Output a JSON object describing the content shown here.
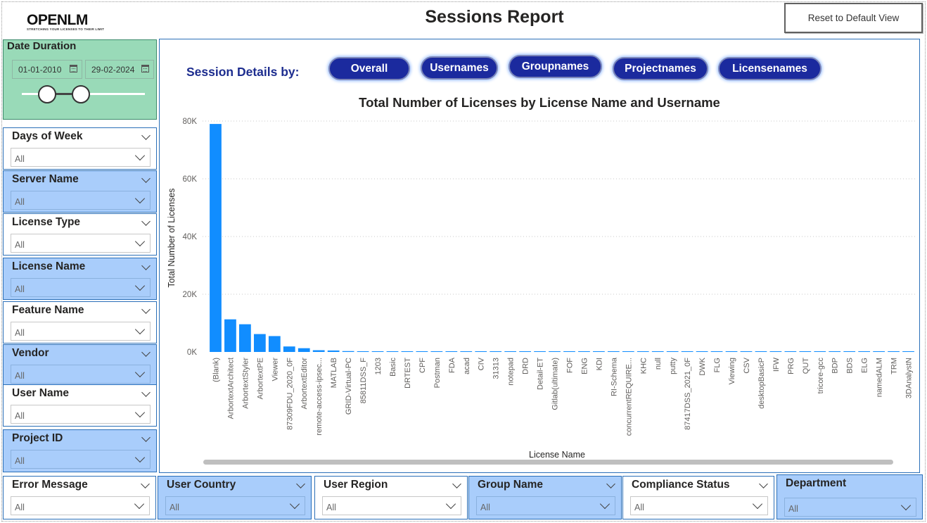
{
  "header": {
    "logo_text": "OPENLM",
    "logo_tagline": "STRETCHING YOUR LICENSES TO THEIR LIMIT",
    "title": "Sessions Report",
    "reset_label": "Reset to Default View"
  },
  "date_duration": {
    "title": "Date Duration",
    "start": "01-01-2010",
    "end": "29-02-2024"
  },
  "slicers": {
    "days_of_week": {
      "title": "Days of Week",
      "value": "All"
    },
    "server_name": {
      "title": "Server Name",
      "value": "All"
    },
    "license_type": {
      "title": "License Type",
      "value": "All"
    },
    "license_name": {
      "title": "License Name",
      "value": "All"
    },
    "feature_name": {
      "title": "Feature Name",
      "value": "All"
    },
    "vendor": {
      "title": "Vendor",
      "value": "All"
    },
    "user_name": {
      "title": "User Name",
      "value": "All"
    },
    "project_id": {
      "title": "Project ID",
      "value": "All"
    },
    "error_message": {
      "title": "Error Message",
      "value": "All"
    },
    "user_country": {
      "title": "User Country",
      "value": "All"
    },
    "user_region": {
      "title": "User Region",
      "value": "All"
    },
    "group_name": {
      "title": "Group Name",
      "value": "All"
    },
    "compliance_status": {
      "title": "Compliance Status",
      "value": "All"
    },
    "department": {
      "title": "Department",
      "value": "All"
    }
  },
  "session_details": {
    "label": "Session Details by:",
    "buttons": [
      "Overall",
      "Usernames",
      "Groupnames",
      "Projectnames",
      "Licensenames"
    ]
  },
  "colors": {
    "bar": "#118dff",
    "pill": "#1b2a9e",
    "slicer_blue": "#a9cdfb",
    "date_card": "#99dab8"
  },
  "chart_data": {
    "type": "bar",
    "title": "Total Number of Licenses by License Name and Username",
    "xlabel": "License Name",
    "ylabel": "Total Number of Licenses",
    "ylim": [
      0,
      80000
    ],
    "yticks": [
      "0K",
      "20K",
      "40K",
      "60K",
      "80K"
    ],
    "grid": true,
    "categories": [
      "(Blank)",
      "ArbortextArchitect",
      "ArbortextStyler",
      "ArbortextPE",
      "Viewer",
      "87309FDU_2020_0F",
      "ArbortextEditor",
      "remote-access-ipsec...",
      "MATLAB",
      "GRID-Virtual-PC",
      "85811DSS_F",
      "1203",
      "Basic",
      "DRTEST",
      "CPF",
      "Postman",
      "FDA",
      "acad",
      "CIV",
      "31313",
      "notepad",
      "DRD",
      "Detail-ET",
      "Gitlab(ultimate)",
      "FOF",
      "ENG",
      "KDI",
      "RI-Schema",
      "concurrentREQUIRE...",
      "KHC",
      "null",
      "putty",
      "87417DSS_2021_0F",
      "DWK",
      "FLG",
      "Viewing",
      "CSV",
      "desktopBasicP",
      "IFW",
      "PRG",
      "QUT",
      "tricore-gcc",
      "BDP",
      "BDS",
      "ELG",
      "namedALM",
      "TRM",
      "3DAnalystN"
    ],
    "values": [
      79000,
      11300,
      9600,
      6200,
      5500,
      1900,
      1300,
      600,
      500,
      300,
      250,
      200,
      180,
      160,
      150,
      140,
      130,
      120,
      110,
      100,
      95,
      90,
      85,
      80,
      75,
      70,
      68,
      66,
      64,
      62,
      60,
      58,
      56,
      54,
      52,
      50,
      48,
      46,
      44,
      42,
      40,
      38,
      36,
      34,
      32,
      30,
      28,
      26
    ]
  }
}
